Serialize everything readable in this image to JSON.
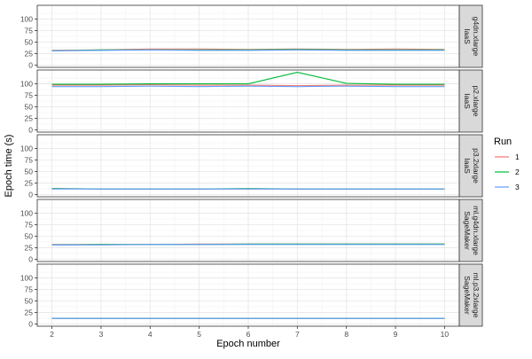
{
  "chart_data": {
    "type": "line",
    "xlabel": "Epoch number",
    "ylabel": "Epoch time (s)",
    "x": [
      2,
      3,
      4,
      5,
      6,
      7,
      8,
      9,
      10
    ],
    "xlim": [
      1.7,
      10.3
    ],
    "ylim": [
      -5,
      130
    ],
    "yticks": [
      0,
      25,
      50,
      75,
      100
    ],
    "grid": true,
    "legend": {
      "title": "Run",
      "placement": "right",
      "entries": [
        {
          "label": "1",
          "color": "#F8766D"
        },
        {
          "label": "2",
          "color": "#00BA38"
        },
        {
          "label": "3",
          "color": "#619CFF"
        }
      ]
    },
    "facets": [
      {
        "strip": [
          "IaaS",
          "g4dn.xlarge"
        ],
        "series": [
          {
            "name": "1",
            "values": [
              32,
              33,
              35,
              35,
              34,
              35,
              34,
              35,
              34
            ]
          },
          {
            "name": "2",
            "values": [
              31,
              33,
              33,
              33,
              33,
              34,
              33,
              33,
              33
            ]
          },
          {
            "name": "3",
            "values": [
              31,
              32,
              33,
              32,
              32,
              33,
              32,
              32,
              32
            ]
          }
        ]
      },
      {
        "strip": [
          "IaaS",
          "p2.xlarge"
        ],
        "series": [
          {
            "name": "1",
            "values": [
              97,
              97,
              98,
              97,
              97,
              96,
              97,
              97,
              97
            ]
          },
          {
            "name": "2",
            "values": [
              99,
              99,
              100,
              100,
              100,
              125,
              101,
              99,
              99
            ]
          },
          {
            "name": "3",
            "values": [
              94,
              94,
              95,
              94,
              95,
              94,
              95,
              94,
              94
            ]
          }
        ]
      },
      {
        "strip": [
          "IaaS",
          "p3.2xlarge"
        ],
        "series": [
          {
            "name": "1",
            "values": [
              13,
              12,
              12,
              12,
              12,
              12,
              12,
              12,
              12
            ]
          },
          {
            "name": "2",
            "values": [
              13,
              12,
              12,
              12,
              13,
              12,
              12,
              12,
              12
            ]
          },
          {
            "name": "3",
            "values": [
              12,
              12,
              12,
              12,
              12,
              12,
              12,
              12,
              12
            ]
          }
        ]
      },
      {
        "strip": [
          "SageMaker",
          "ml.g4dn.xlarge"
        ],
        "series": [
          {
            "name": "1",
            "values": [
              32,
              32,
              32,
              33,
              33,
              33,
              33,
              33,
              33
            ]
          },
          {
            "name": "2",
            "values": [
              31,
              32,
              32,
              32,
              33,
              33,
              33,
              33,
              33
            ]
          },
          {
            "name": "3",
            "values": [
              31,
              31,
              32,
              32,
              32,
              32,
              32,
              32,
              32
            ]
          }
        ]
      },
      {
        "strip": [
          "SageMaker",
          "ml.p3.2xlarge"
        ],
        "series": [
          {
            "name": "1",
            "values": [
              12,
              12,
              12,
              12,
              12,
              12,
              12,
              12,
              12
            ]
          },
          {
            "name": "2",
            "values": [
              12,
              12,
              12,
              12,
              12,
              12,
              12,
              12,
              12
            ]
          },
          {
            "name": "3",
            "values": [
              12,
              12,
              12,
              12,
              12,
              12,
              12,
              12,
              12
            ]
          }
        ]
      }
    ]
  }
}
